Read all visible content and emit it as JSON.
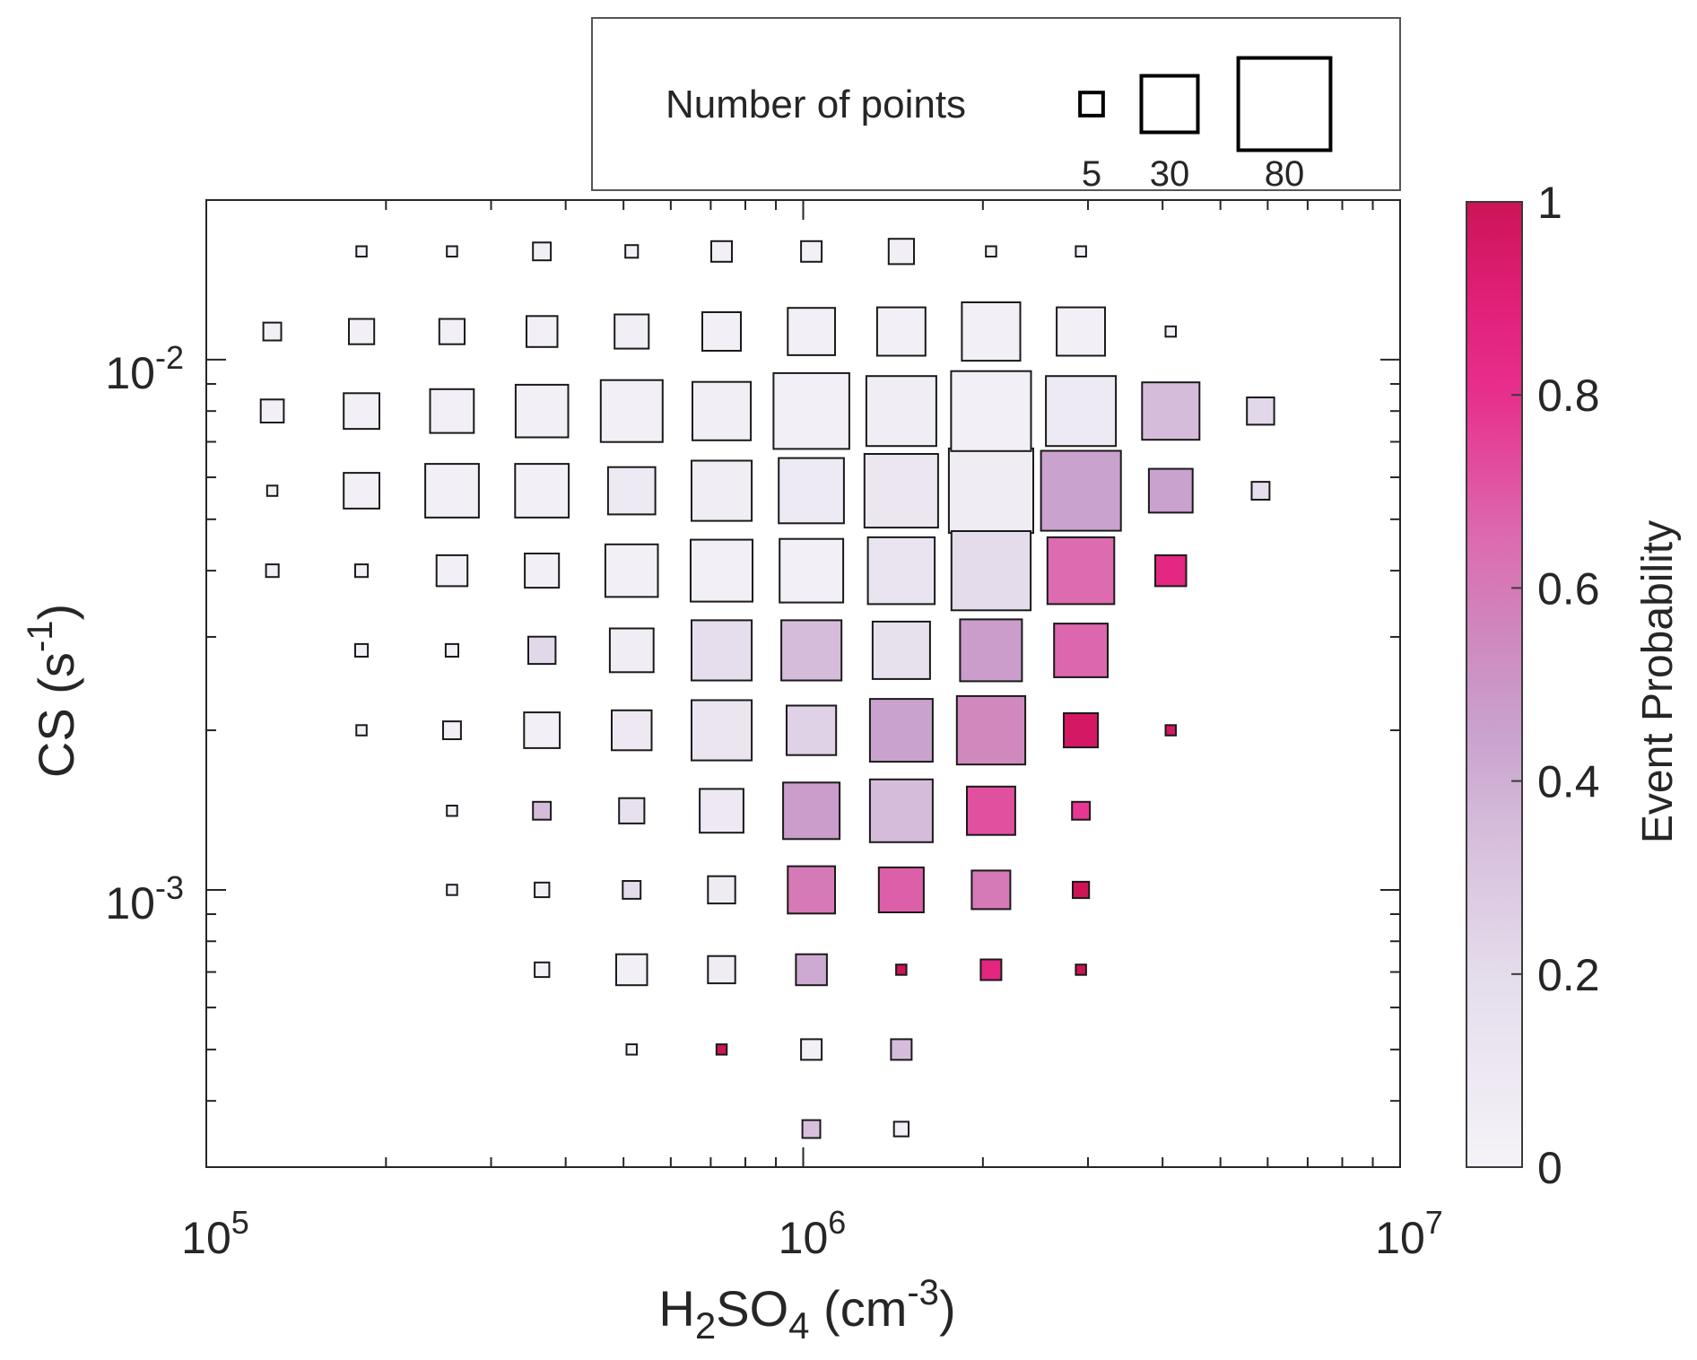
{
  "chart_data": {
    "type": "scatter",
    "title": "",
    "xlabel": {
      "base": "H",
      "sub1": "2",
      "mid": "SO",
      "sub2": "4",
      "unit_open": " (cm",
      "unit_sup": "-3",
      "unit_close": ")"
    },
    "ylabel": {
      "text": "CS (s",
      "sup": "-1",
      "close": ")"
    },
    "xscale": "log",
    "yscale": "log",
    "xlim": [
      100000,
      10000000
    ],
    "ylim": [
      0.0003,
      0.02
    ],
    "x_ticks": [
      {
        "value": 100000,
        "base": "10",
        "exp": "5"
      },
      {
        "value": 1000000,
        "base": "10",
        "exp": "6"
      },
      {
        "value": 10000000,
        "base": "10",
        "exp": "7"
      }
    ],
    "y_ticks": [
      {
        "value": 0.01,
        "base": "10",
        "exp": "-2"
      },
      {
        "value": 0.001,
        "base": "10",
        "exp": "-3"
      }
    ],
    "grid": false,
    "colorbar": {
      "label": "Event Probability",
      "range": [
        0,
        1
      ],
      "ticks": [
        "0",
        "0.2",
        "0.4",
        "0.6",
        "0.8",
        "1"
      ],
      "tick_values": [
        0,
        0.2,
        0.4,
        0.6,
        0.8,
        1
      ],
      "colormap": [
        {
          "v": 0.0,
          "color": "#f5f3f8"
        },
        {
          "v": 0.2,
          "color": "#e4dceb"
        },
        {
          "v": 0.35,
          "color": "#d6bcdb"
        },
        {
          "v": 0.45,
          "color": "#c9a2cd"
        },
        {
          "v": 0.55,
          "color": "#cf89bd"
        },
        {
          "v": 0.65,
          "color": "#dc6bb0"
        },
        {
          "v": 0.8,
          "color": "#e7308c"
        },
        {
          "v": 0.9,
          "color": "#e01f78"
        },
        {
          "v": 1.0,
          "color": "#cc1456"
        }
      ]
    },
    "size_legend": {
      "title": "Number of points",
      "entries": [
        {
          "n": 5,
          "label": "5"
        },
        {
          "n": 30,
          "label": "30"
        },
        {
          "n": 80,
          "label": "80"
        }
      ],
      "placement": "top"
    },
    "x_bins": [
      129000,
      182000,
      258000,
      365000,
      516000,
      730000,
      1032000,
      1460000,
      2064000,
      2919000,
      4128000,
      5838000
    ],
    "y_bins": [
      0.016,
      0.0113,
      0.008,
      0.00566,
      0.004,
      0.00283,
      0.002,
      0.00141,
      0.001,
      0.000707,
      0.0005,
      0.000354
    ],
    "points": [
      {
        "xi": 1,
        "yi": 0,
        "n": 1,
        "p": 0.02
      },
      {
        "xi": 2,
        "yi": 0,
        "n": 1,
        "p": 0.02
      },
      {
        "xi": 3,
        "yi": 0,
        "n": 3,
        "p": 0.03
      },
      {
        "xi": 4,
        "yi": 0,
        "n": 1.5,
        "p": 0.02
      },
      {
        "xi": 5,
        "yi": 0,
        "n": 4,
        "p": 0.03
      },
      {
        "xi": 6,
        "yi": 0,
        "n": 4,
        "p": 0.03
      },
      {
        "xi": 7,
        "yi": 0,
        "n": 6,
        "p": 0.04
      },
      {
        "xi": 8,
        "yi": 0,
        "n": 1,
        "p": 0.02
      },
      {
        "xi": 9,
        "yi": 0,
        "n": 1,
        "p": 0.02
      },
      {
        "xi": 0,
        "yi": 1,
        "n": 3,
        "p": 0.03
      },
      {
        "xi": 1,
        "yi": 1,
        "n": 6,
        "p": 0.03
      },
      {
        "xi": 2,
        "yi": 1,
        "n": 6,
        "p": 0.03
      },
      {
        "xi": 3,
        "yi": 1,
        "n": 9,
        "p": 0.03
      },
      {
        "xi": 4,
        "yi": 1,
        "n": 11,
        "p": 0.04
      },
      {
        "xi": 5,
        "yi": 1,
        "n": 14,
        "p": 0.03
      },
      {
        "xi": 6,
        "yi": 1,
        "n": 21,
        "p": 0.03
      },
      {
        "xi": 7,
        "yi": 1,
        "n": 22,
        "p": 0.03
      },
      {
        "xi": 8,
        "yi": 1,
        "n": 32,
        "p": 0.03
      },
      {
        "xi": 9,
        "yi": 1,
        "n": 22,
        "p": 0.03
      },
      {
        "xi": 10,
        "yi": 1,
        "n": 1,
        "p": 0.02
      },
      {
        "xi": 0,
        "yi": 2,
        "n": 5,
        "p": 0.03
      },
      {
        "xi": 1,
        "yi": 2,
        "n": 12,
        "p": 0.03
      },
      {
        "xi": 2,
        "yi": 2,
        "n": 18,
        "p": 0.03
      },
      {
        "xi": 3,
        "yi": 2,
        "n": 26,
        "p": 0.03
      },
      {
        "xi": 4,
        "yi": 2,
        "n": 36,
        "p": 0.03
      },
      {
        "xi": 5,
        "yi": 2,
        "n": 32,
        "p": 0.04
      },
      {
        "xi": 6,
        "yi": 2,
        "n": 54,
        "p": 0.03
      },
      {
        "xi": 7,
        "yi": 2,
        "n": 46,
        "p": 0.05
      },
      {
        "xi": 8,
        "yi": 2,
        "n": 60,
        "p": 0.03
      },
      {
        "xi": 9,
        "yi": 2,
        "n": 46,
        "p": 0.08
      },
      {
        "xi": 10,
        "yi": 2,
        "n": 31,
        "p": 0.35
      },
      {
        "xi": 11,
        "yi": 2,
        "n": 7,
        "p": 0.22
      },
      {
        "xi": 0,
        "yi": 3,
        "n": 1,
        "p": 0.02
      },
      {
        "xi": 1,
        "yi": 3,
        "n": 12,
        "p": 0.03
      },
      {
        "xi": 2,
        "yi": 3,
        "n": 27,
        "p": 0.03
      },
      {
        "xi": 3,
        "yi": 3,
        "n": 27,
        "p": 0.03
      },
      {
        "xi": 4,
        "yi": 3,
        "n": 21,
        "p": 0.08
      },
      {
        "xi": 5,
        "yi": 3,
        "n": 34,
        "p": 0.05
      },
      {
        "xi": 6,
        "yi": 3,
        "n": 40,
        "p": 0.08
      },
      {
        "xi": 7,
        "yi": 3,
        "n": 51,
        "p": 0.11
      },
      {
        "xi": 8,
        "yi": 3,
        "n": 67,
        "p": 0.06
      },
      {
        "xi": 9,
        "yi": 3,
        "n": 60,
        "p": 0.45
      },
      {
        "xi": 10,
        "yi": 3,
        "n": 18,
        "p": 0.45
      },
      {
        "xi": 11,
        "yi": 3,
        "n": 3,
        "p": 0.18
      },
      {
        "xi": 0,
        "yi": 4,
        "n": 1.5,
        "p": 0.02
      },
      {
        "xi": 1,
        "yi": 4,
        "n": 1.5,
        "p": 0.02
      },
      {
        "xi": 2,
        "yi": 4,
        "n": 9,
        "p": 0.03
      },
      {
        "xi": 3,
        "yi": 4,
        "n": 11,
        "p": 0.03
      },
      {
        "xi": 4,
        "yi": 4,
        "n": 26,
        "p": 0.03
      },
      {
        "xi": 5,
        "yi": 4,
        "n": 36,
        "p": 0.03
      },
      {
        "xi": 6,
        "yi": 4,
        "n": 38,
        "p": 0.03
      },
      {
        "xi": 7,
        "yi": 4,
        "n": 42,
        "p": 0.13
      },
      {
        "xi": 8,
        "yi": 4,
        "n": 59,
        "p": 0.2
      },
      {
        "xi": 9,
        "yi": 4,
        "n": 42,
        "p": 0.65
      },
      {
        "xi": 10,
        "yi": 4,
        "n": 9,
        "p": 0.85
      },
      {
        "xi": 1,
        "yi": 5,
        "n": 1.5,
        "p": 0.02
      },
      {
        "xi": 2,
        "yi": 5,
        "n": 1.5,
        "p": 0.02
      },
      {
        "xi": 3,
        "yi": 5,
        "n": 7,
        "p": 0.22
      },
      {
        "xi": 4,
        "yi": 5,
        "n": 18,
        "p": 0.05
      },
      {
        "xi": 5,
        "yi": 5,
        "n": 34,
        "p": 0.18
      },
      {
        "xi": 6,
        "yi": 5,
        "n": 34,
        "p": 0.35
      },
      {
        "xi": 7,
        "yi": 5,
        "n": 31,
        "p": 0.16
      },
      {
        "xi": 8,
        "yi": 5,
        "n": 36,
        "p": 0.47
      },
      {
        "xi": 9,
        "yi": 5,
        "n": 27,
        "p": 0.66
      },
      {
        "xi": 1,
        "yi": 6,
        "n": 1,
        "p": 0.02
      },
      {
        "xi": 2,
        "yi": 6,
        "n": 3,
        "p": 0.03
      },
      {
        "xi": 3,
        "yi": 6,
        "n": 12,
        "p": 0.03
      },
      {
        "xi": 4,
        "yi": 6,
        "n": 15,
        "p": 0.1
      },
      {
        "xi": 5,
        "yi": 6,
        "n": 34,
        "p": 0.12
      },
      {
        "xi": 6,
        "yi": 6,
        "n": 23,
        "p": 0.25
      },
      {
        "xi": 7,
        "yi": 6,
        "n": 37,
        "p": 0.45
      },
      {
        "xi": 8,
        "yi": 6,
        "n": 44,
        "p": 0.55
      },
      {
        "xi": 9,
        "yi": 6,
        "n": 11,
        "p": 0.96
      },
      {
        "xi": 10,
        "yi": 6,
        "n": 1,
        "p": 0.96
      },
      {
        "xi": 2,
        "yi": 7,
        "n": 1,
        "p": 0.02
      },
      {
        "xi": 3,
        "yi": 7,
        "n": 3,
        "p": 0.35
      },
      {
        "xi": 4,
        "yi": 7,
        "n": 6,
        "p": 0.16
      },
      {
        "xi": 5,
        "yi": 7,
        "n": 18,
        "p": 0.1
      },
      {
        "xi": 6,
        "yi": 7,
        "n": 30,
        "p": 0.47
      },
      {
        "xi": 7,
        "yi": 7,
        "n": 37,
        "p": 0.35
      },
      {
        "xi": 8,
        "yi": 7,
        "n": 22,
        "p": 0.72
      },
      {
        "xi": 9,
        "yi": 7,
        "n": 3,
        "p": 0.78
      },
      {
        "xi": 2,
        "yi": 8,
        "n": 1,
        "p": 0.02
      },
      {
        "xi": 3,
        "yi": 8,
        "n": 2,
        "p": 0.03
      },
      {
        "xi": 4,
        "yi": 8,
        "n": 3,
        "p": 0.2
      },
      {
        "xi": 5,
        "yi": 8,
        "n": 7,
        "p": 0.07
      },
      {
        "xi": 6,
        "yi": 8,
        "n": 21,
        "p": 0.6
      },
      {
        "xi": 7,
        "yi": 8,
        "n": 19,
        "p": 0.68
      },
      {
        "xi": 8,
        "yi": 8,
        "n": 14,
        "p": 0.6
      },
      {
        "xi": 9,
        "yi": 8,
        "n": 2.5,
        "p": 1.0
      },
      {
        "xi": 3,
        "yi": 9,
        "n": 2,
        "p": 0.02
      },
      {
        "xi": 4,
        "yi": 9,
        "n": 9,
        "p": 0.03
      },
      {
        "xi": 5,
        "yi": 9,
        "n": 7,
        "p": 0.06
      },
      {
        "xi": 6,
        "yi": 9,
        "n": 9,
        "p": 0.42
      },
      {
        "xi": 7,
        "yi": 9,
        "n": 1,
        "p": 1.0
      },
      {
        "xi": 8,
        "yi": 9,
        "n": 4,
        "p": 0.86
      },
      {
        "xi": 9,
        "yi": 9,
        "n": 1,
        "p": 1.0
      },
      {
        "xi": 4,
        "yi": 10,
        "n": 1,
        "p": 0.02
      },
      {
        "xi": 5,
        "yi": 10,
        "n": 1,
        "p": 1.0
      },
      {
        "xi": 6,
        "yi": 10,
        "n": 4,
        "p": 0.03
      },
      {
        "xi": 7,
        "yi": 10,
        "n": 4,
        "p": 0.35
      },
      {
        "xi": 6,
        "yi": 11,
        "n": 3,
        "p": 0.33
      },
      {
        "xi": 7,
        "yi": 11,
        "n": 2,
        "p": 0.03
      }
    ]
  }
}
